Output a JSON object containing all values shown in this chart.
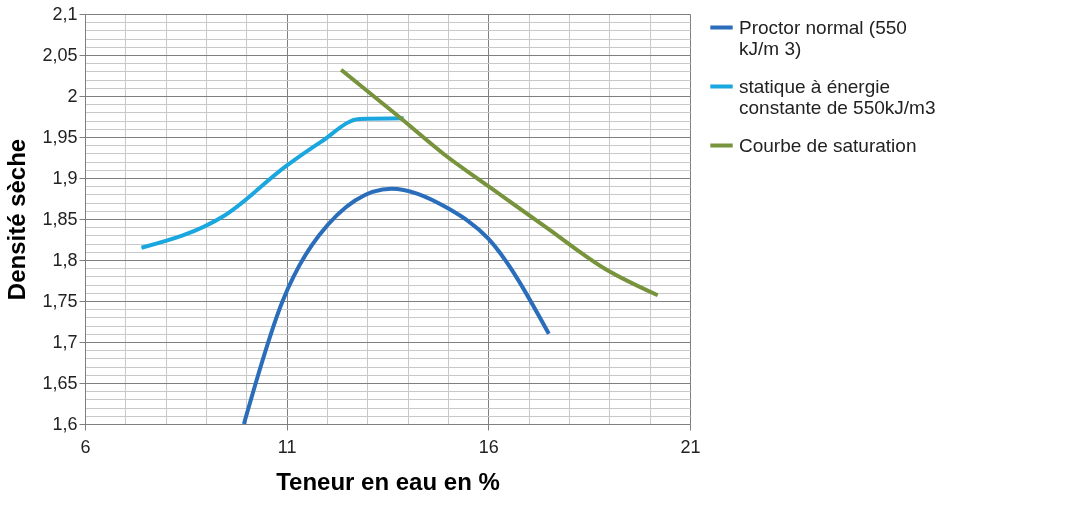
{
  "chart_data": {
    "type": "line",
    "xlabel": "Teneur en eau en %",
    "ylabel": "Densité sèche",
    "xlim": [
      6,
      21
    ],
    "xticks": [
      6,
      11,
      16,
      21
    ],
    "ylim": [
      1.6,
      2.1
    ],
    "yticks": [
      {
        "value": 1.6,
        "label": "1,6"
      },
      {
        "value": 1.65,
        "label": "1,65"
      },
      {
        "value": 1.7,
        "label": "1,7"
      },
      {
        "value": 1.75,
        "label": "1,75"
      },
      {
        "value": 1.8,
        "label": "1,8"
      },
      {
        "value": 1.85,
        "label": "1,85"
      },
      {
        "value": 1.9,
        "label": "1,9"
      },
      {
        "value": 1.95,
        "label": "1,95"
      },
      {
        "value": 2.0,
        "label": "2"
      },
      {
        "value": 2.05,
        "label": "2,05"
      },
      {
        "value": 2.1,
        "label": "2,1"
      }
    ],
    "grid": true,
    "legend": "right",
    "marker": "none",
    "line_style": "solid",
    "series": [
      {
        "name": "Proctor normal (550 kJ/m 3)",
        "color": "#2a6ebb",
        "x": [
          9.94,
          10.9,
          11.8,
          13.6,
          15.0,
          16.0,
          17.5
        ],
        "values": [
          1.6,
          1.75,
          1.83,
          1.887,
          1.863,
          1.826,
          1.71
        ]
      },
      {
        "name": "statique à énergie constante de 550kJ/m3",
        "color": "#1aa6de",
        "x": [
          7.4,
          9.45,
          11.0,
          11.85,
          12.8,
          13.9
        ],
        "values": [
          1.815,
          1.854,
          1.915,
          1.944,
          1.972,
          1.973
        ]
      },
      {
        "name": "Courbe de saturation",
        "color": "#77933c",
        "x": [
          12.35,
          13.8,
          14.9,
          16.0,
          17.4,
          18.9,
          20.2
        ],
        "values": [
          2.032,
          1.974,
          1.929,
          1.89,
          1.841,
          1.789,
          1.757
        ]
      }
    ]
  }
}
